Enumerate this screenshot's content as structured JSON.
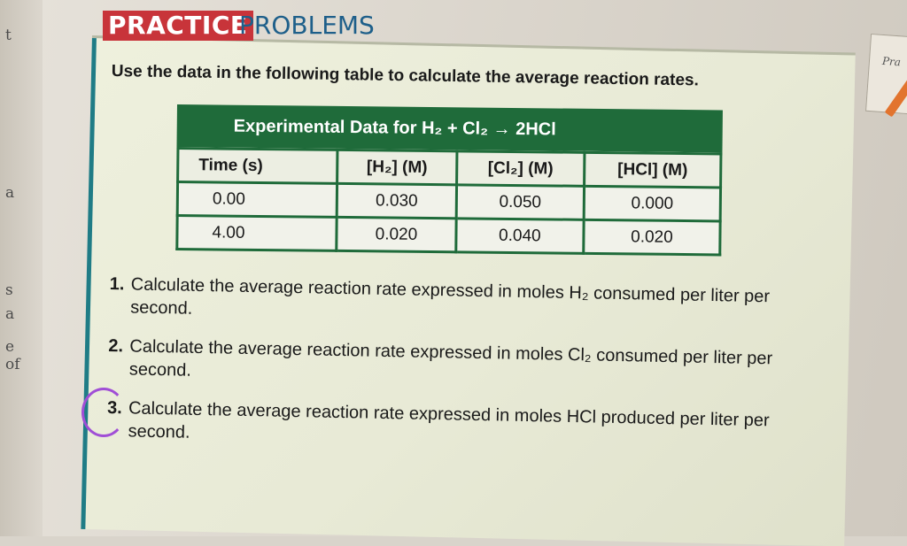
{
  "header": {
    "practice_label": "PRACTICE",
    "problems_label": "PROBLEMS"
  },
  "instruction": "Use the data in the following table to calculate the average reaction rates.",
  "table": {
    "title": "Experimental Data for H₂ + Cl₂ → 2HCl",
    "columns": [
      "Time (s)",
      "[H₂] (M)",
      "[Cl₂] (M)",
      "[HCl] (M)"
    ],
    "rows": [
      [
        "0.00",
        "0.030",
        "0.050",
        "0.000"
      ],
      [
        "4.00",
        "0.020",
        "0.040",
        "0.020"
      ]
    ]
  },
  "questions": [
    {
      "number": "1.",
      "text": "Calculate the average reaction rate expressed in moles H₂ consumed per liter per second."
    },
    {
      "number": "2.",
      "text": "Calculate the average reaction rate expressed in moles Cl₂ consumed per liter per second."
    },
    {
      "number": "3.",
      "text": "Calculate the average reaction rate expressed in moles HCl produced per liter per second."
    }
  ],
  "margin_letters": [
    "t",
    "a",
    "s",
    "a",
    "e",
    "of"
  ],
  "side_page_text": "Pra",
  "colors": {
    "practice_bg": "#c8343a",
    "problems_text": "#1e5f8a",
    "table_green": "#1f6b3a",
    "circle_mark": "#a04ed6"
  }
}
